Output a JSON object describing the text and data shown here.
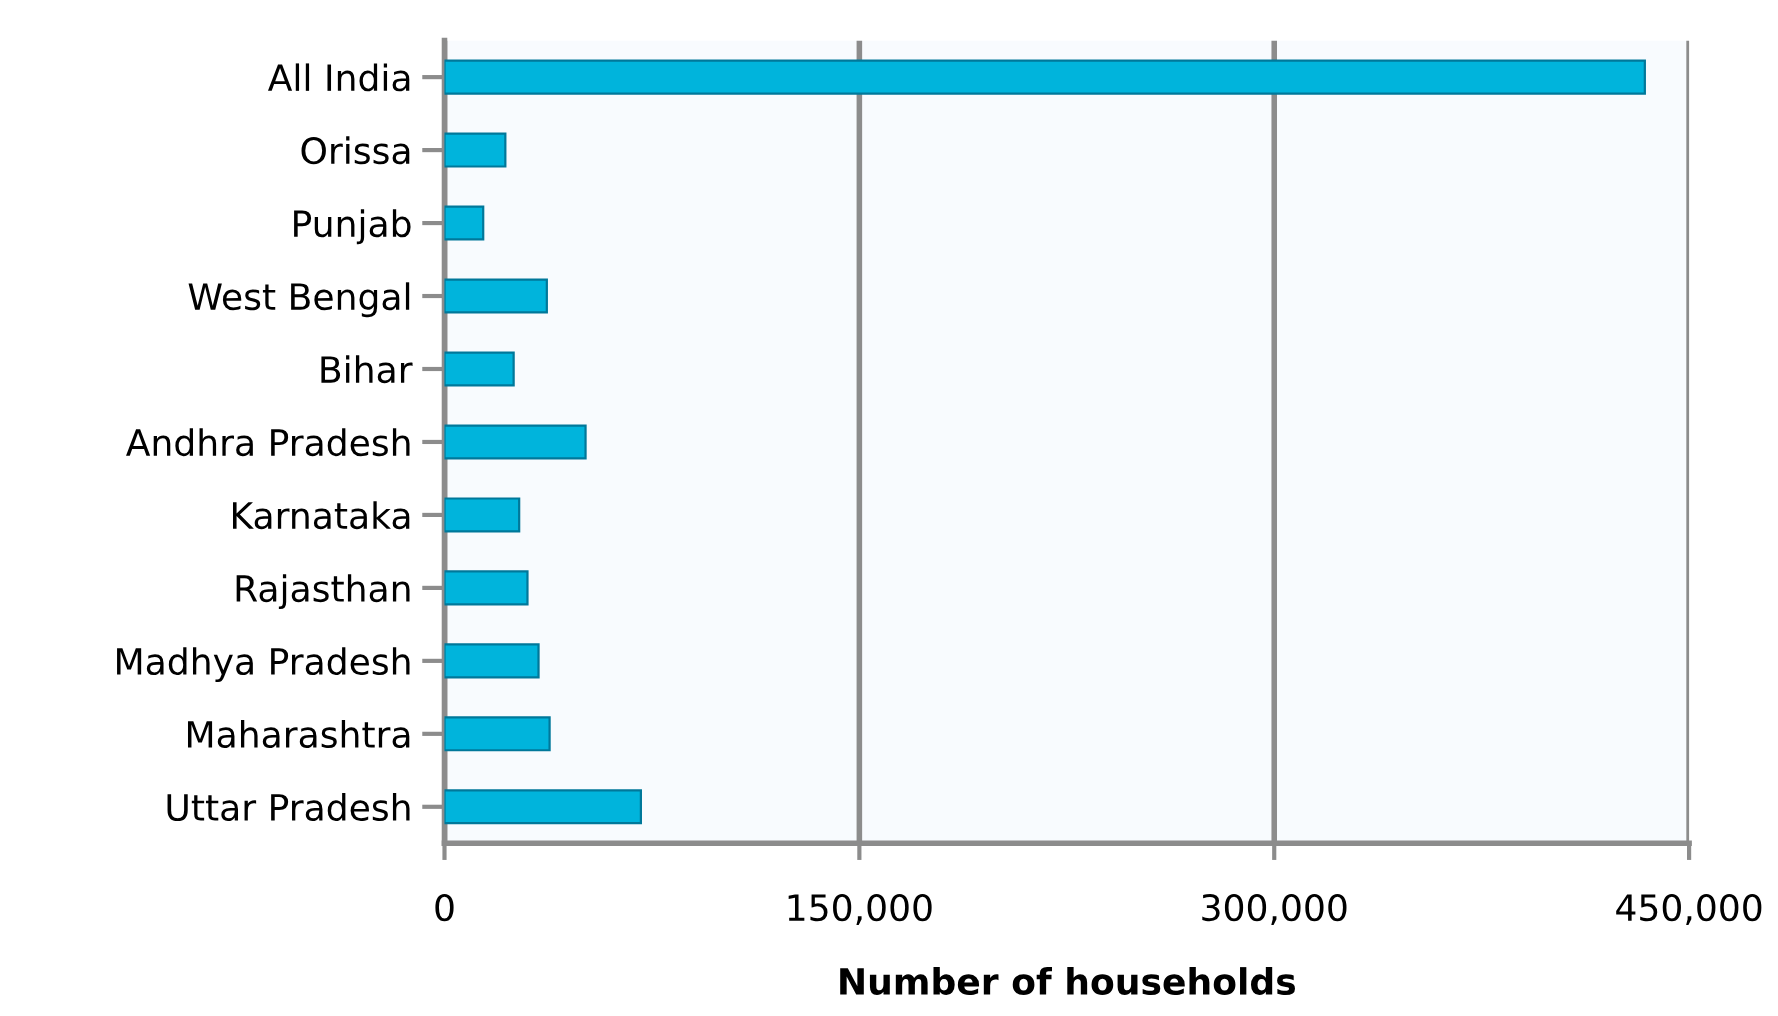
{
  "chart_data": {
    "type": "bar",
    "orientation": "horizontal",
    "xlabel": "Number of households",
    "categories": [
      "All India",
      "Orissa",
      "Punjab",
      "West Bengal",
      "Bihar",
      "Andhra Pradesh",
      "Karnataka",
      "Rajasthan",
      "Madhya Pradesh",
      "Maharashtra",
      "Uttar Pradesh"
    ],
    "values": [
      434000,
      22000,
      14000,
      37000,
      25000,
      51000,
      27000,
      30000,
      34000,
      38000,
      71000
    ],
    "color": "#00b4dc",
    "xlim": [
      0,
      450000
    ],
    "xticks": [
      {
        "value": 0,
        "label": "0"
      },
      {
        "value": 150000,
        "label": "150,000"
      },
      {
        "value": 300000,
        "label": "300,000"
      },
      {
        "value": 450000,
        "label": "450,000"
      }
    ],
    "grid": "x",
    "legend": false
  }
}
